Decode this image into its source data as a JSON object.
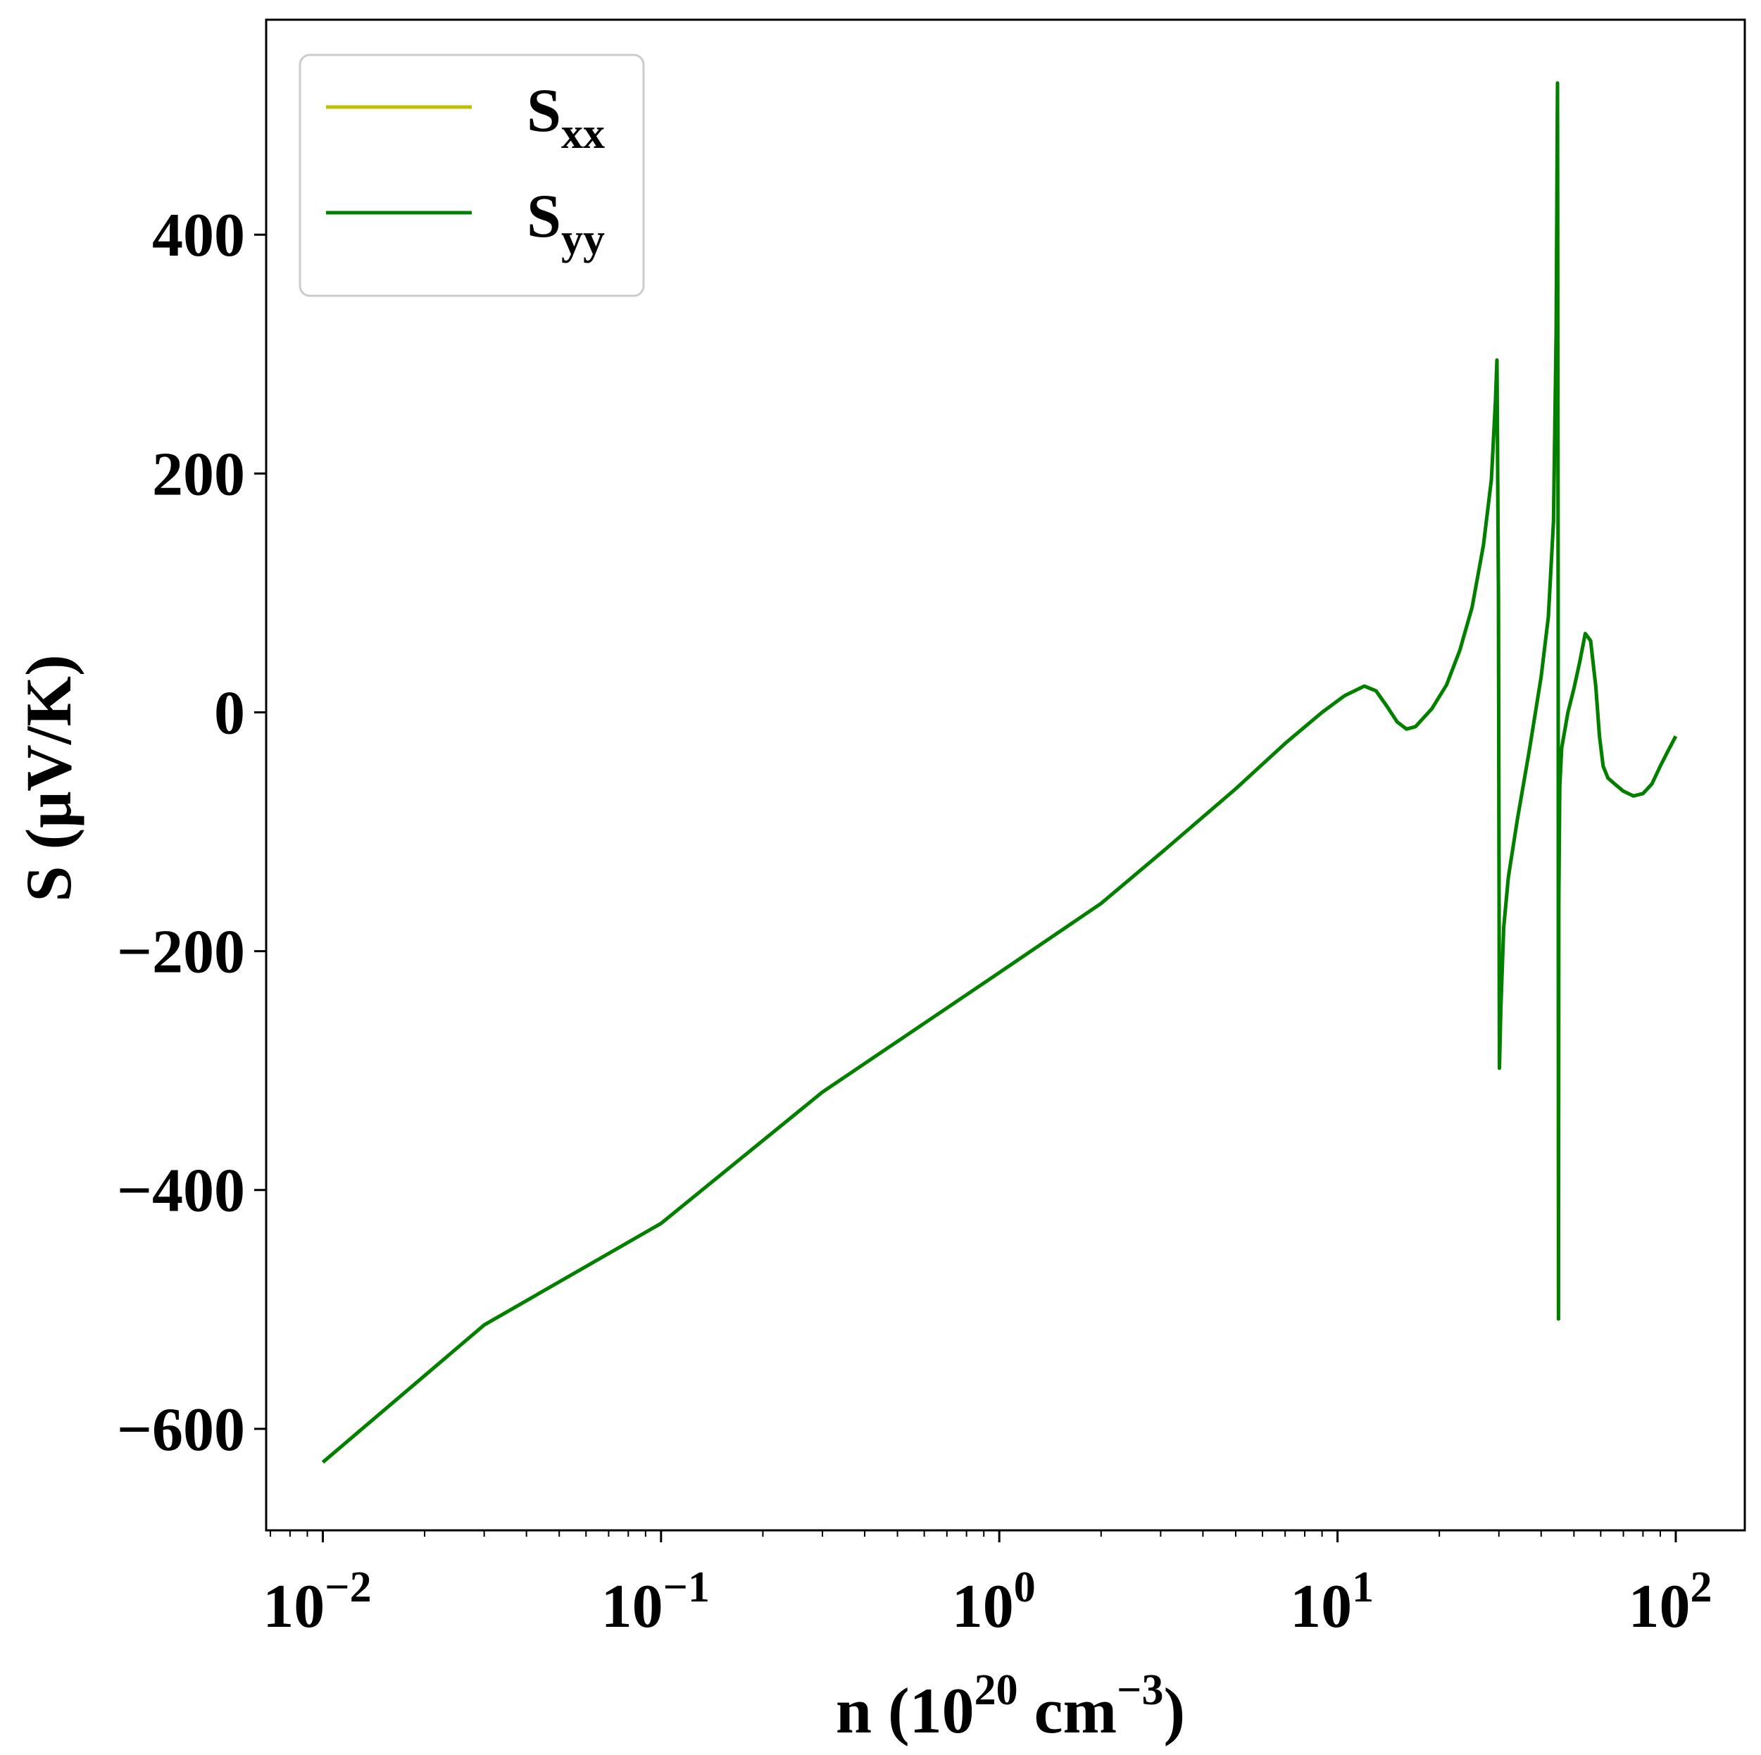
{
  "chart_data": {
    "type": "line",
    "title": "",
    "xlabel": "n (10",
    "xlabel_sup": "20",
    "xlabel_mid": " cm",
    "xlabel_sup2": "−3",
    "xlabel_end": ")",
    "ylabel": "S (μV/K)",
    "xscale": "log",
    "xlim": [
      0.0068,
      160
    ],
    "ylim": [
      -685,
      580
    ],
    "grid": false,
    "legend_position": "top-left",
    "x_ticks": [
      {
        "value": 0.01,
        "base": "10",
        "exp": "−2"
      },
      {
        "value": 0.1,
        "base": "10",
        "exp": "−1"
      },
      {
        "value": 1,
        "base": "10",
        "exp": "0"
      },
      {
        "value": 10,
        "base": "10",
        "exp": "1"
      },
      {
        "value": 100,
        "base": "10",
        "exp": "2"
      }
    ],
    "y_ticks": [
      {
        "value": 400,
        "label": "400"
      },
      {
        "value": 200,
        "label": "200"
      },
      {
        "value": 0,
        "label": "0"
      },
      {
        "value": -200,
        "label": "−200"
      },
      {
        "value": -400,
        "label": "−400"
      },
      {
        "value": -600,
        "label": "−600"
      }
    ],
    "series": [
      {
        "name": "S",
        "name_sub": "xx",
        "color": "#bfbf00",
        "x": [
          0.01,
          0.03,
          0.1,
          0.3,
          1,
          2,
          3,
          5,
          7,
          9,
          10.5,
          12,
          13,
          14,
          15,
          16,
          17,
          19,
          21,
          23,
          25,
          27,
          28.5,
          29.3,
          29.6,
          29.9,
          30.1,
          30.4,
          31,
          32,
          34,
          37,
          40,
          42,
          43.5,
          44.3,
          44.7,
          44.9,
          45,
          45.1,
          45.4,
          46,
          48,
          50,
          52,
          54,
          56,
          58,
          59.5,
          61,
          63,
          66,
          70,
          75,
          80,
          85,
          90,
          95,
          100
        ],
        "y": [
          -628,
          -513,
          -428,
          -318,
          -218,
          -160,
          -118,
          -64,
          -26,
          0,
          14,
          22,
          18,
          5,
          -8,
          -14,
          -12,
          3,
          23,
          52,
          88,
          140,
          195,
          260,
          295,
          100,
          -298,
          -248,
          -180,
          -138,
          -90,
          -30,
          30,
          80,
          160,
          320,
          527,
          100,
          -508,
          -160,
          -62,
          -30,
          0,
          20,
          42,
          66,
          60,
          22,
          -20,
          -45,
          -55,
          -60,
          -66,
          -70,
          -68,
          -60,
          -45,
          -32,
          -20
        ]
      },
      {
        "name": "S",
        "name_sub": "yy",
        "color": "#008000",
        "x": [
          0.01,
          0.03,
          0.1,
          0.3,
          1,
          2,
          3,
          5,
          7,
          9,
          10.5,
          12,
          13,
          14,
          15,
          16,
          17,
          19,
          21,
          23,
          25,
          27,
          28.5,
          29.3,
          29.6,
          29.9,
          30.1,
          30.4,
          31,
          32,
          34,
          37,
          40,
          42,
          43.5,
          44.3,
          44.7,
          44.9,
          45,
          45.1,
          45.4,
          46,
          48,
          50,
          52,
          54,
          56,
          58,
          59.5,
          61,
          63,
          66,
          70,
          75,
          80,
          85,
          90,
          95,
          100
        ],
        "y": [
          -628,
          -513,
          -428,
          -318,
          -218,
          -160,
          -118,
          -64,
          -26,
          0,
          14,
          22,
          18,
          5,
          -8,
          -14,
          -12,
          3,
          23,
          52,
          88,
          140,
          195,
          260,
          295,
          100,
          -298,
          -248,
          -180,
          -138,
          -90,
          -30,
          30,
          80,
          160,
          320,
          527,
          100,
          -508,
          -160,
          -62,
          -30,
          0,
          20,
          42,
          66,
          60,
          22,
          -20,
          -45,
          -55,
          -60,
          -66,
          -70,
          -68,
          -60,
          -45,
          -32,
          -20
        ]
      }
    ]
  }
}
